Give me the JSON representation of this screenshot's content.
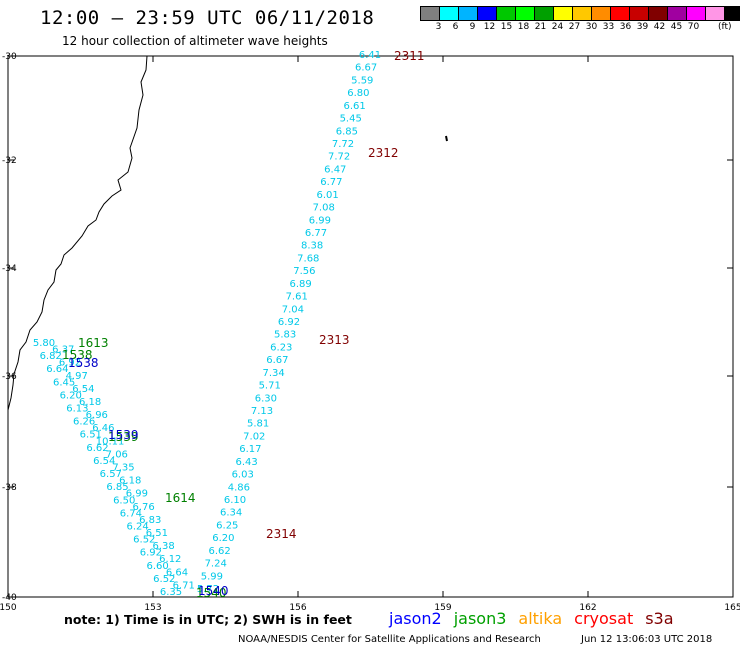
{
  "header": {
    "title": "12:00 – 23:59 UTC 06/11/2018",
    "subtitle": "12 hour collection of altimeter wave heights"
  },
  "colorbar": {
    "colors": [
      "#7f7f7f",
      "#00ffff",
      "#00b4ff",
      "#0000ff",
      "#00c800",
      "#00ff00",
      "#00a000",
      "#ffff00",
      "#ffc800",
      "#ff8c00",
      "#ff0000",
      "#c80000",
      "#800000",
      "#a000a0",
      "#ff00ff",
      "#ff96e6",
      "#000000"
    ],
    "labels": [
      "3",
      "6",
      "9",
      "12",
      "15",
      "18",
      "21",
      "24",
      "27",
      "30",
      "33",
      "36",
      "39",
      "42",
      "45",
      "70"
    ],
    "unit": "(ft)"
  },
  "map": {
    "lat_labels": [
      "-30",
      "-32",
      "-34",
      "-36",
      "-38",
      "-40"
    ],
    "lon_labels": [
      "150",
      "153",
      "156",
      "159",
      "162",
      "165"
    ],
    "track_east": {
      "color": "#00c8e8",
      "values": [
        "6.41",
        "6.67",
        "5.59",
        "6.80",
        "6.61",
        "5.45",
        "6.85",
        "7.72",
        "7.72",
        "6.47",
        "6.77",
        "6.01",
        "7.08",
        "6.99",
        "6.77",
        "8.38",
        "7.68",
        "7.56",
        "6.89",
        "7.61",
        "7.04",
        "6.92",
        "5.83",
        "6.23",
        "6.67",
        "7.34",
        "5.71",
        "6.30",
        "7.13",
        "5.81",
        "7.02",
        "6.17",
        "6.43",
        "6.03",
        "4.86",
        "6.10",
        "6.34",
        "6.25",
        "6.20",
        "6.62",
        "7.24",
        "5.99",
        "5.72"
      ]
    },
    "track_west": {
      "color": "#00c8e8",
      "values": [
        "5.80",
        "6.37",
        "6.82",
        "6.92",
        "6.64",
        "4.97",
        "6.45",
        "6.54",
        "6.20",
        "6.18",
        "6.13",
        "6.96",
        "6.26",
        "6.46",
        "6.51",
        "10.11",
        "6.62",
        "7.06",
        "6.54",
        "7.35",
        "6.57",
        "6.18",
        "6.85",
        "6.99",
        "6.50",
        "6.76",
        "6.74",
        "6.83",
        "6.24",
        "6.51",
        "6.52",
        "6.38",
        "6.92",
        "6.12",
        "6.60",
        "6.64",
        "6.52",
        "6.71",
        "6.35"
      ]
    },
    "time_labels": [
      {
        "text": "2311",
        "color": "#800000"
      },
      {
        "text": "2312",
        "color": "#800000"
      },
      {
        "text": "2313",
        "color": "#800000"
      },
      {
        "text": "2314",
        "color": "#800000"
      },
      {
        "text": "1613",
        "color": "#008000"
      },
      {
        "text": "1538",
        "color": "#008000"
      },
      {
        "text": "1538",
        "color": "#0000c8"
      },
      {
        "text": "1539",
        "color": "#008000"
      },
      {
        "text": "1539",
        "color": "#0000c8"
      },
      {
        "text": "1614",
        "color": "#008000"
      },
      {
        "text": "1540",
        "color": "#008000"
      },
      {
        "text": "1540",
        "color": "#0000c8"
      }
    ]
  },
  "footer": {
    "note": "note: 1) Time is in UTC; 2) SWH is in feet",
    "satellites": [
      {
        "name": "jason2",
        "color": "#0000ff"
      },
      {
        "name": "jason3",
        "color": "#00a000"
      },
      {
        "name": "altika",
        "color": "#ffa000"
      },
      {
        "name": "cryosat",
        "color": "#ff0000"
      },
      {
        "name": "s3a",
        "color": "#800000"
      }
    ],
    "credit": "NOAA/NESDIS Center for Satellite Applications and Research",
    "timestamp": "Jun 12 13:06:03 UTC 2018"
  }
}
